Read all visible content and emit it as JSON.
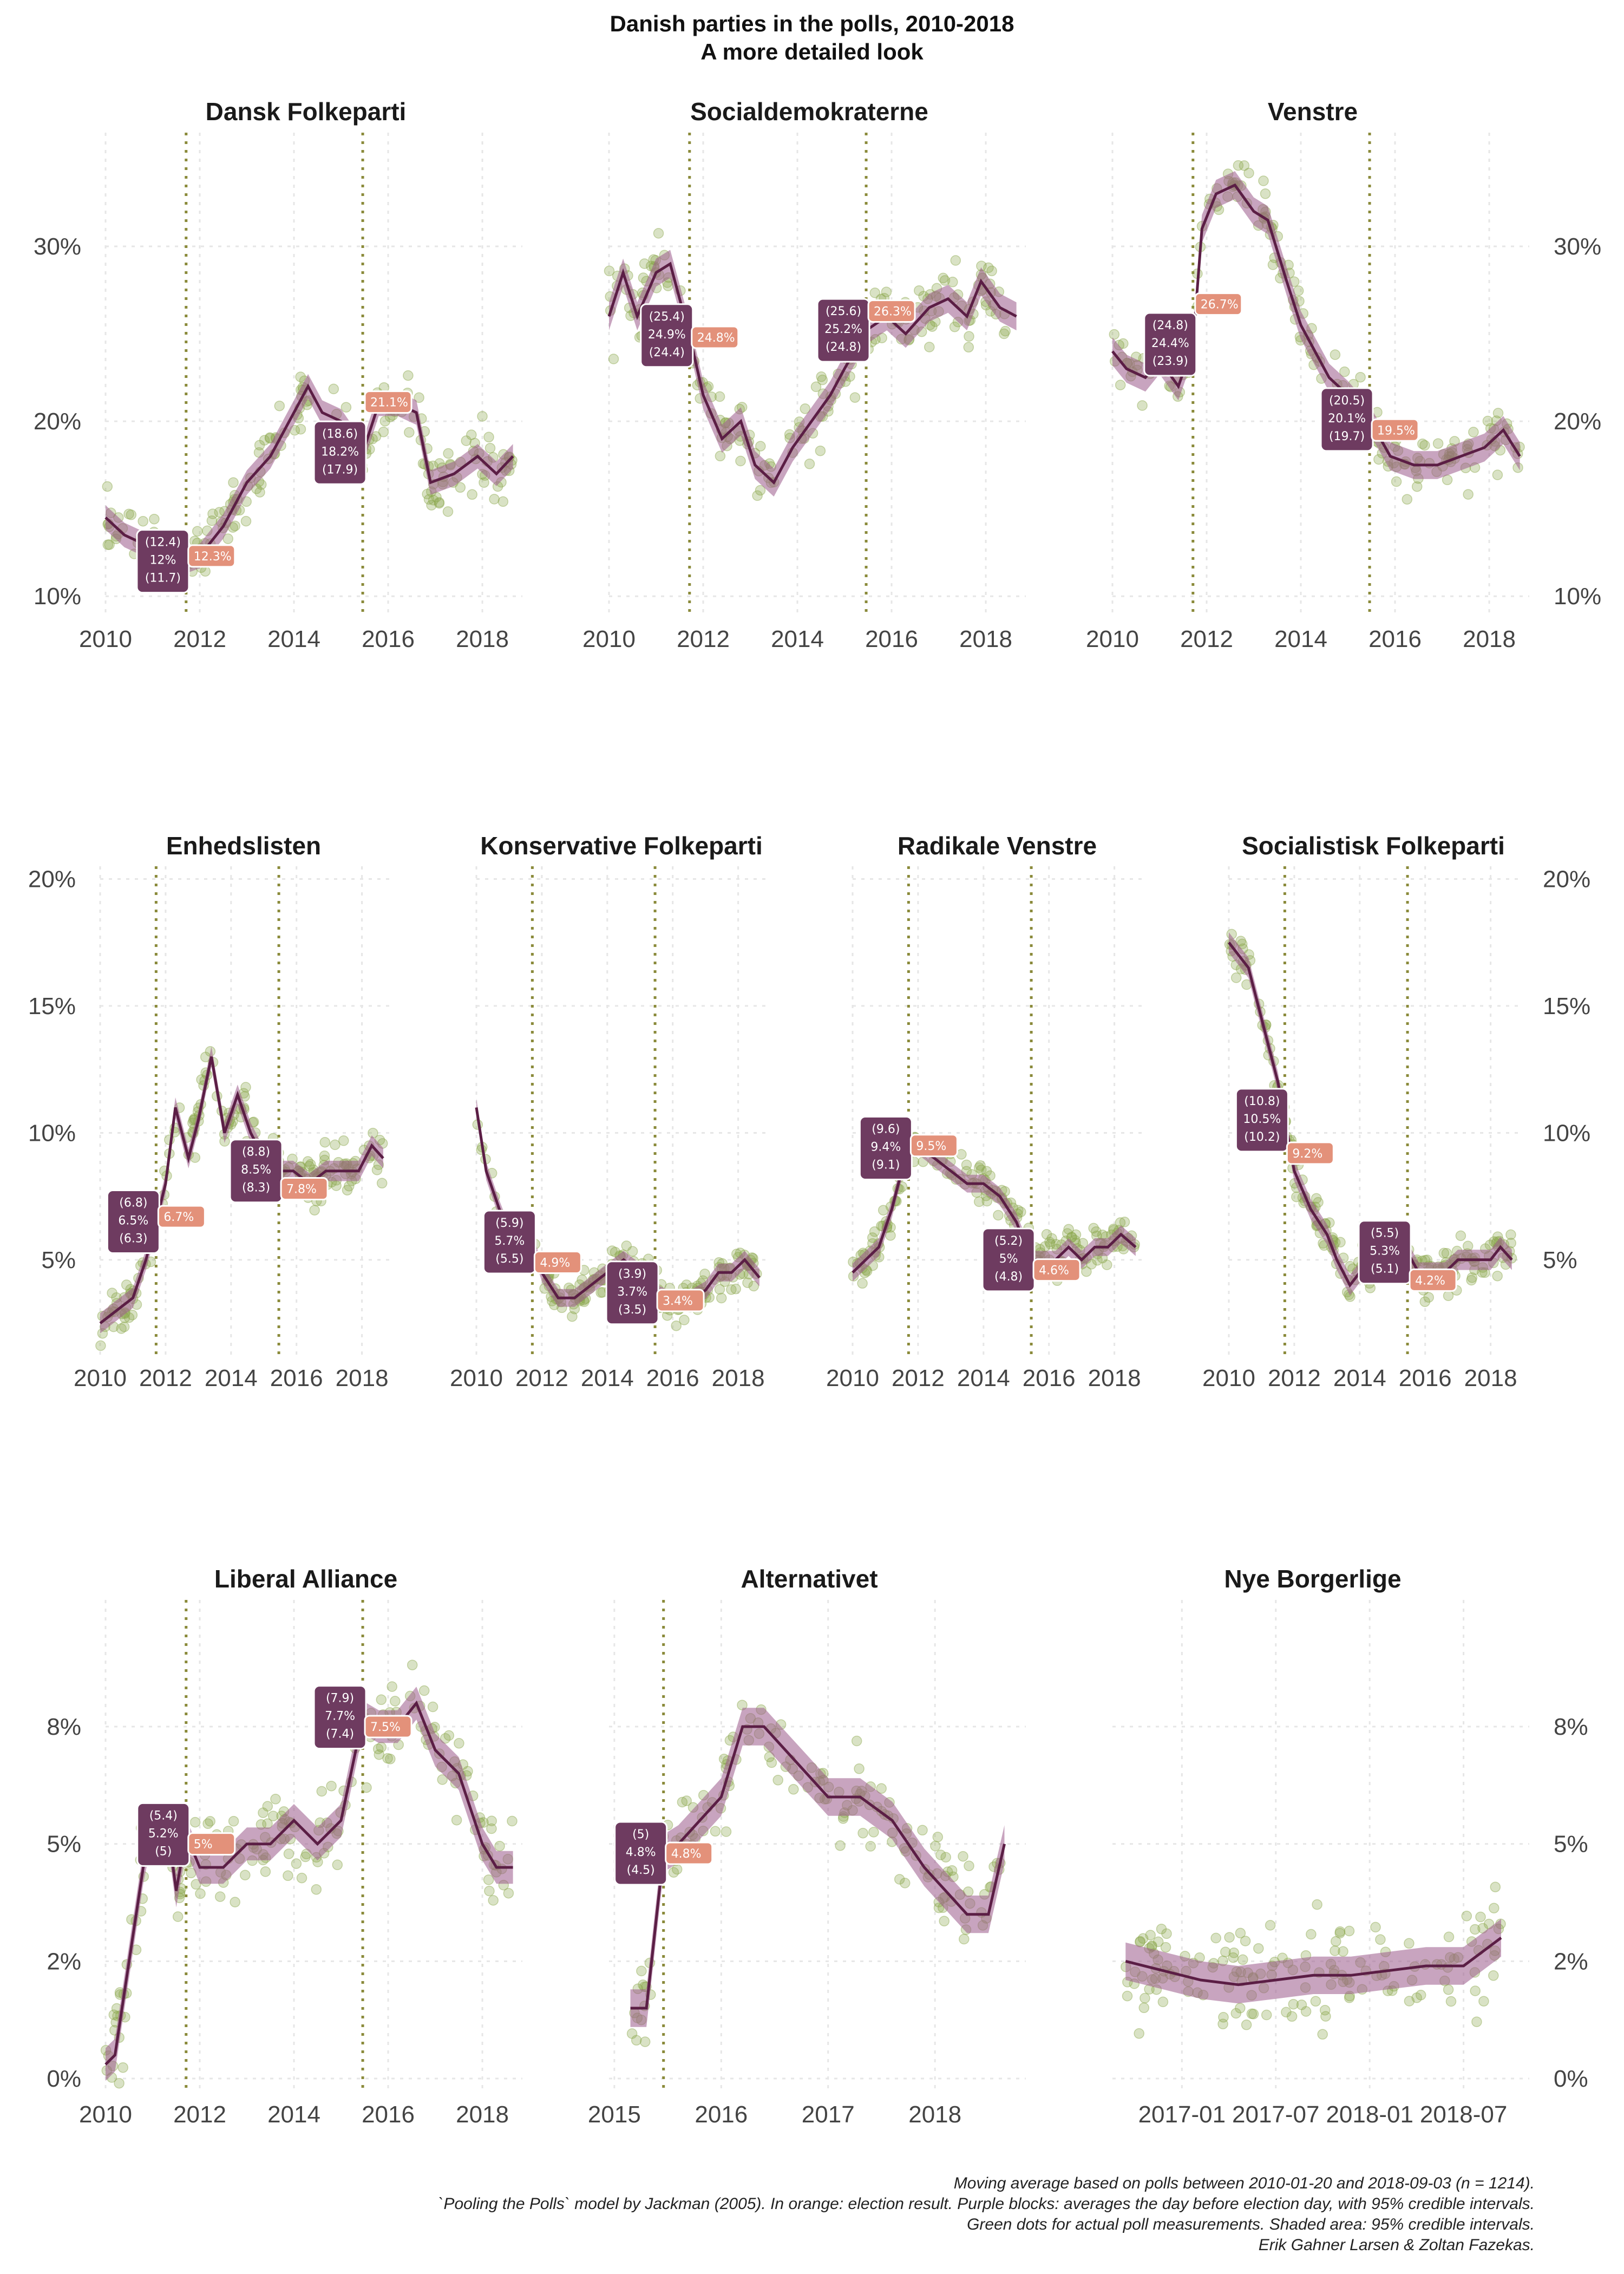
{
  "title": "Danish parties in the polls, 2010-2018",
  "subtitle": "A more detailed look",
  "caption": [
    "Moving average based on polls between 2010-01-20 and 2018-09-03 (n = 1214).",
    "`Pooling the Polls` model by Jackman (2005). In orange: election result. Purple blocks: averages the day before election day, with 95% credible intervals.",
    "Green dots for actual poll measurements. Shaded area: 95% credible intervals.",
    "Erik Gahner Larsen & Zoltan Fazekas."
  ],
  "colors": {
    "dots": "#8aa64a",
    "line": "#5b1e45",
    "band": "#9a5a8a",
    "purple_block": "#6e3b60",
    "orange_block": "#e3917a",
    "election_line": "#8a8a3a",
    "grid": "#e6e6e6"
  },
  "chart_data": [
    {
      "type": "line",
      "name": "Dansk Folkeparti",
      "title": "Dansk Folkeparti",
      "xlim": [
        2010,
        2018.85
      ],
      "ylim": [
        8.8,
        36.5
      ],
      "yticks": [
        10,
        20,
        30
      ],
      "ytick_labels": [
        "10%",
        "20%",
        "30%"
      ],
      "xticks": [
        2010,
        2012,
        2014,
        2016,
        2018
      ],
      "xtick_labels": [
        "2010",
        "2012",
        "2014",
        "2016",
        "2018"
      ],
      "elections": [
        2011.71,
        2015.46
      ],
      "x": [
        2010.0,
        2010.4,
        2010.8,
        2011.2,
        2011.7,
        2012.0,
        2012.5,
        2013.0,
        2013.5,
        2014.0,
        2014.3,
        2014.6,
        2015.0,
        2015.46,
        2015.8,
        2016.2,
        2016.6,
        2016.9,
        2017.4,
        2017.9,
        2018.3,
        2018.65
      ],
      "y": [
        14.5,
        13.5,
        13.0,
        12.5,
        12.0,
        12.3,
        14.0,
        16.5,
        18.0,
        20.5,
        22.0,
        20.5,
        20.0,
        18.2,
        21.0,
        21.0,
        20.5,
        16.5,
        17.0,
        18.0,
        17.0,
        18.0
      ],
      "band": 0.7,
      "n_dots": 200,
      "dot_spread": 1.6,
      "purple": {
        "x": 2011.7,
        "low": "(11.7)",
        "mid": "12%",
        "high": "(12.4)"
      },
      "orange": {
        "x": 2011.71,
        "value": 12.3,
        "label": "12.3%"
      },
      "purple2": {
        "x": 2015.46,
        "low": "(17.9)",
        "mid": "18.2%",
        "high": "(18.6)"
      },
      "orange2": {
        "x": 2015.46,
        "value": 21.1,
        "label": "21.1%"
      }
    },
    {
      "type": "line",
      "name": "Socialdemokraterne",
      "title": "Socialdemokraterne",
      "xlim": [
        2010,
        2018.85
      ],
      "ylim": [
        8.8,
        36.5
      ],
      "yticks": [
        10,
        20,
        30
      ],
      "ytick_labels": [],
      "xticks": [
        2010,
        2012,
        2014,
        2016,
        2018
      ],
      "xtick_labels": [
        "2010",
        "2012",
        "2014",
        "2016",
        "2018"
      ],
      "elections": [
        2011.71,
        2015.46
      ],
      "x": [
        2010.0,
        2010.3,
        2010.6,
        2011.0,
        2011.3,
        2011.71,
        2012.0,
        2012.4,
        2012.8,
        2013.1,
        2013.5,
        2013.9,
        2014.3,
        2014.7,
        2015.0,
        2015.46,
        2015.9,
        2016.3,
        2016.8,
        2017.2,
        2017.6,
        2017.9,
        2018.3,
        2018.65
      ],
      "y": [
        26.0,
        28.5,
        26.0,
        28.5,
        29.0,
        24.9,
        21.5,
        19.0,
        20.0,
        17.5,
        16.5,
        18.5,
        20.0,
        21.5,
        23.0,
        25.2,
        26.0,
        25.0,
        26.5,
        27.0,
        26.0,
        28.0,
        26.5,
        26.0
      ],
      "band": 0.8,
      "n_dots": 200,
      "dot_spread": 1.7,
      "purple": {
        "x": 2011.71,
        "low": "(24.4)",
        "mid": "24.9%",
        "high": "(25.4)"
      },
      "orange": {
        "x": 2011.71,
        "value": 24.8,
        "label": "24.8%"
      },
      "purple2": {
        "x": 2015.46,
        "low": "(24.8)",
        "mid": "25.2%",
        "high": "(25.6)"
      },
      "orange2": {
        "x": 2015.46,
        "value": 26.3,
        "label": "26.3%"
      }
    },
    {
      "type": "line",
      "name": "Venstre",
      "title": "Venstre",
      "xlim": [
        2010,
        2018.85
      ],
      "ylim": [
        8.8,
        36.5
      ],
      "yticks": [
        10,
        20,
        30
      ],
      "ytick_labels": [
        "10%",
        "20%",
        "30%"
      ],
      "xticks": [
        2010,
        2012,
        2014,
        2016,
        2018
      ],
      "xtick_labels": [
        "2010",
        "2012",
        "2014",
        "2016",
        "2018"
      ],
      "elections": [
        2011.71,
        2015.46
      ],
      "x": [
        2010.0,
        2010.3,
        2010.7,
        2011.0,
        2011.4,
        2011.71,
        2011.9,
        2012.2,
        2012.6,
        2013.0,
        2013.3,
        2013.7,
        2014.0,
        2014.3,
        2014.6,
        2015.0,
        2015.46,
        2015.9,
        2016.4,
        2016.9,
        2017.4,
        2017.9,
        2018.3,
        2018.65
      ],
      "y": [
        24.0,
        23.0,
        22.5,
        23.5,
        22.0,
        24.4,
        31.0,
        33.0,
        33.5,
        32.0,
        31.5,
        28.0,
        25.5,
        24.0,
        22.5,
        21.5,
        20.1,
        18.0,
        17.5,
        17.5,
        18.0,
        18.5,
        19.5,
        18.0
      ],
      "band": 0.8,
      "n_dots": 200,
      "dot_spread": 1.6,
      "purple": {
        "x": 2011.71,
        "low": "(23.9)",
        "mid": "24.4%",
        "high": "(24.8)"
      },
      "orange": {
        "x": 2011.71,
        "value": 26.7,
        "label": "26.7%"
      },
      "purple2": {
        "x": 2015.46,
        "low": "(19.7)",
        "mid": "20.1%",
        "high": "(20.5)"
      },
      "orange2": {
        "x": 2015.46,
        "value": 19.5,
        "label": "19.5%"
      }
    },
    {
      "type": "line",
      "name": "Enhedslisten",
      "title": "Enhedslisten",
      "xlim": [
        2010,
        2018.85
      ],
      "ylim": [
        1.2,
        20.5
      ],
      "yticks": [
        5,
        10,
        15,
        20
      ],
      "ytick_labels": [
        "5%",
        "10%",
        "15%",
        "20%"
      ],
      "xticks": [
        2010,
        2012,
        2014,
        2016,
        2018
      ],
      "xtick_labels": [
        "2010",
        "2012",
        "2014",
        "2016",
        "2018"
      ],
      "elections": [
        2011.71,
        2015.46
      ],
      "x": [
        2010.0,
        2010.5,
        2011.0,
        2011.4,
        2011.71,
        2012.0,
        2012.3,
        2012.7,
        2013.0,
        2013.4,
        2013.8,
        2014.2,
        2014.6,
        2015.0,
        2015.46,
        2015.9,
        2016.4,
        2016.9,
        2017.4,
        2017.9,
        2018.3,
        2018.65
      ],
      "y": [
        2.5,
        3.0,
        3.5,
        5.0,
        6.5,
        8.0,
        11.0,
        9.0,
        10.5,
        13.0,
        10.0,
        11.5,
        10.0,
        9.0,
        8.5,
        8.5,
        8.0,
        8.5,
        8.5,
        8.5,
        9.5,
        9.0
      ],
      "band": 0.4,
      "n_dots": 200,
      "dot_spread": 0.9,
      "purple": {
        "x": 2011.71,
        "low": "(6.3)",
        "mid": "6.5%",
        "high": "(6.8)"
      },
      "orange": {
        "x": 2011.71,
        "value": 6.7,
        "label": "6.7%"
      },
      "purple2": {
        "x": 2015.46,
        "low": "(8.3)",
        "mid": "8.5%",
        "high": "(8.8)"
      },
      "orange2": {
        "x": 2015.46,
        "value": 7.8,
        "label": "7.8%"
      }
    },
    {
      "type": "line",
      "name": "Konservative Folkeparti",
      "title": "Konservative Folkeparti",
      "xlim": [
        2010,
        2018.85
      ],
      "ylim": [
        1.2,
        20.5
      ],
      "yticks": [
        5,
        10,
        15,
        20
      ],
      "ytick_labels": [],
      "xticks": [
        2010,
        2012,
        2014,
        2016,
        2018
      ],
      "xtick_labels": [
        "2010",
        "2012",
        "2014",
        "2016",
        "2018"
      ],
      "elections": [
        2011.71,
        2015.46
      ],
      "x": [
        2010.0,
        2010.3,
        2010.7,
        2011.0,
        2011.4,
        2011.71,
        2012.0,
        2012.5,
        2013.0,
        2013.5,
        2014.0,
        2014.5,
        2015.0,
        2015.46,
        2015.8,
        2016.2,
        2016.6,
        2017.0,
        2017.4,
        2017.8,
        2018.2,
        2018.65
      ],
      "y": [
        11.0,
        8.5,
        7.0,
        6.0,
        6.0,
        5.7,
        4.5,
        3.5,
        3.5,
        4.0,
        4.5,
        5.0,
        4.5,
        3.7,
        3.5,
        3.5,
        3.5,
        3.8,
        4.5,
        4.5,
        5.0,
        4.3
      ],
      "band": 0.35,
      "n_dots": 200,
      "dot_spread": 0.7,
      "purple": {
        "x": 2011.71,
        "low": "(5.5)",
        "mid": "5.7%",
        "high": "(5.9)"
      },
      "orange": {
        "x": 2011.71,
        "value": 4.9,
        "label": "4.9%"
      },
      "purple2": {
        "x": 2015.46,
        "low": "(3.5)",
        "mid": "3.7%",
        "high": "(3.9)"
      },
      "orange2": {
        "x": 2015.46,
        "value": 3.4,
        "label": "3.4%"
      }
    },
    {
      "type": "line",
      "name": "Radikale Venstre",
      "title": "Radikale Venstre",
      "xlim": [
        2010,
        2018.85
      ],
      "ylim": [
        1.2,
        20.5
      ],
      "yticks": [
        5,
        10,
        15,
        20
      ],
      "ytick_labels": [],
      "xticks": [
        2010,
        2012,
        2014,
        2016,
        2018
      ],
      "xtick_labels": [
        "2010",
        "2012",
        "2014",
        "2016",
        "2018"
      ],
      "elections": [
        2011.71,
        2015.46
      ],
      "x": [
        2010.0,
        2010.4,
        2010.8,
        2011.2,
        2011.5,
        2011.71,
        2012.0,
        2012.5,
        2013.0,
        2013.5,
        2014.0,
        2014.5,
        2015.0,
        2015.46,
        2015.8,
        2016.2,
        2016.6,
        2017.0,
        2017.4,
        2017.8,
        2018.2,
        2018.65
      ],
      "y": [
        4.5,
        5.0,
        5.5,
        7.0,
        8.5,
        9.4,
        9.5,
        9.0,
        8.5,
        8.0,
        8.0,
        7.5,
        6.5,
        5.0,
        5.0,
        5.0,
        5.5,
        5.0,
        5.5,
        5.5,
        6.0,
        5.5
      ],
      "band": 0.35,
      "n_dots": 200,
      "dot_spread": 0.8,
      "purple": {
        "x": 2011.71,
        "low": "(9.1)",
        "mid": "9.4%",
        "high": "(9.6)"
      },
      "orange": {
        "x": 2011.71,
        "value": 9.5,
        "label": "9.5%"
      },
      "purple2": {
        "x": 2015.46,
        "low": "(4.8)",
        "mid": "5%",
        "high": "(5.2)"
      },
      "orange2": {
        "x": 2015.46,
        "value": 4.6,
        "label": "4.6%"
      }
    },
    {
      "type": "line",
      "name": "Socialistisk Folkeparti",
      "title": "Socialistisk Folkeparti",
      "xlim": [
        2010,
        2018.85
      ],
      "ylim": [
        1.2,
        20.5
      ],
      "yticks": [
        5,
        10,
        15,
        20
      ],
      "ytick_labels": [
        "5%",
        "10%",
        "15%",
        "20%"
      ],
      "xticks": [
        2010,
        2012,
        2014,
        2016,
        2018
      ],
      "xtick_labels": [
        "2010",
        "2012",
        "2014",
        "2016",
        "2018"
      ],
      "elections": [
        2011.71,
        2015.46
      ],
      "x": [
        2010.0,
        2010.3,
        2010.6,
        2010.9,
        2011.2,
        2011.5,
        2011.71,
        2012.0,
        2012.5,
        2013.0,
        2013.3,
        2013.7,
        2014.0,
        2014.5,
        2015.0,
        2015.46,
        2015.8,
        2016.2,
        2016.6,
        2017.0,
        2017.5,
        2018.0,
        2018.3,
        2018.65
      ],
      "y": [
        17.5,
        17.0,
        16.5,
        15.0,
        13.5,
        12.0,
        10.5,
        8.5,
        7.0,
        6.0,
        5.0,
        4.0,
        4.5,
        5.0,
        5.5,
        5.3,
        4.5,
        4.5,
        4.5,
        5.0,
        5.0,
        5.0,
        5.5,
        5.0
      ],
      "band": 0.4,
      "n_dots": 200,
      "dot_spread": 0.8,
      "purple": {
        "x": 2011.71,
        "low": "(10.2)",
        "mid": "10.5%",
        "high": "(10.8)"
      },
      "orange": {
        "x": 2011.71,
        "value": 9.2,
        "label": "9.2%"
      },
      "purple2": {
        "x": 2015.46,
        "low": "(5.1)",
        "mid": "5.3%",
        "high": "(5.5)"
      },
      "orange2": {
        "x": 2015.46,
        "value": 4.2,
        "label": "4.2%"
      }
    },
    {
      "type": "line",
      "name": "Liberal Alliance",
      "title": "Liberal Alliance",
      "xlim": [
        2010,
        2018.85
      ],
      "ylim": [
        -0.3,
        10.2
      ],
      "yticks": [
        0,
        2.5,
        5,
        7.5
      ],
      "ytick_labels": [
        "0%",
        "2%",
        "5%",
        "8%"
      ],
      "xticks": [
        2010,
        2012,
        2014,
        2016,
        2018
      ],
      "xtick_labels": [
        "2010",
        "2012",
        "2014",
        "2016",
        "2018"
      ],
      "elections": [
        2011.71,
        2015.46
      ],
      "x": [
        2010.0,
        2010.2,
        2010.5,
        2010.8,
        2011.0,
        2011.3,
        2011.5,
        2011.71,
        2012.0,
        2012.5,
        2013.0,
        2013.5,
        2014.0,
        2014.5,
        2015.0,
        2015.46,
        2015.8,
        2016.2,
        2016.6,
        2017.0,
        2017.5,
        2018.0,
        2018.3,
        2018.65
      ],
      "y": [
        0.3,
        0.5,
        2.5,
        4.5,
        5.5,
        5.5,
        4.0,
        5.2,
        4.5,
        4.5,
        5.0,
        5.0,
        5.5,
        5.0,
        5.5,
        7.7,
        7.5,
        7.5,
        8.0,
        7.0,
        6.5,
        5.0,
        4.5,
        4.5
      ],
      "band": 0.35,
      "n_dots": 200,
      "dot_spread": 0.9,
      "purple": {
        "x": 2011.71,
        "low": "(5)",
        "mid": "5.2%",
        "high": "(5.4)"
      },
      "orange": {
        "x": 2011.71,
        "value": 5.0,
        "label": "5%"
      },
      "purple2": {
        "x": 2015.46,
        "low": "(7.4)",
        "mid": "7.7%",
        "high": "(7.9)"
      },
      "orange2": {
        "x": 2015.46,
        "value": 7.5,
        "label": "7.5%"
      }
    },
    {
      "type": "line",
      "name": "Alternativet",
      "title": "Alternativet",
      "xlim": [
        2014.95,
        2018.85
      ],
      "ylim": [
        -0.3,
        10.2
      ],
      "yticks": [
        0,
        2.5,
        5,
        7.5
      ],
      "ytick_labels": [],
      "xticks": [
        2015,
        2016,
        2017,
        2018
      ],
      "xtick_labels": [
        "2015",
        "2016",
        "2017",
        "2018"
      ],
      "elections": [
        2015.46
      ],
      "x": [
        2015.15,
        2015.3,
        2015.46,
        2015.6,
        2015.8,
        2016.0,
        2016.2,
        2016.4,
        2016.6,
        2016.8,
        2017.0,
        2017.3,
        2017.6,
        2017.9,
        2018.1,
        2018.3,
        2018.5,
        2018.65
      ],
      "y": [
        1.5,
        1.5,
        4.8,
        5.0,
        5.5,
        6.0,
        7.5,
        7.5,
        7.0,
        6.5,
        6.0,
        6.0,
        5.5,
        4.5,
        4.0,
        3.5,
        3.5,
        5.0
      ],
      "band": 0.4,
      "n_dots": 160,
      "dot_spread": 0.8,
      "purple": {
        "x": 2015.46,
        "low": "(4.5)",
        "mid": "4.8%",
        "high": "(5)"
      },
      "orange": {
        "x": 2015.46,
        "value": 4.8,
        "label": "4.8%"
      }
    },
    {
      "type": "line",
      "name": "Nye Borgerlige",
      "title": "Nye Borgerlige",
      "xlim": [
        2016.63,
        2018.85
      ],
      "ylim": [
        -0.3,
        10.2
      ],
      "yticks": [
        0,
        2.5,
        5,
        7.5
      ],
      "ytick_labels": [
        "0%",
        "2%",
        "5%",
        "8%"
      ],
      "xticks": [
        2017.0,
        2017.5,
        2018.0,
        2018.5
      ],
      "xtick_labels": [
        "2017-01",
        "2017-07",
        "2018-01",
        "2018-07"
      ],
      "elections": [],
      "x": [
        2016.7,
        2016.9,
        2017.1,
        2017.3,
        2017.5,
        2017.7,
        2017.9,
        2018.1,
        2018.3,
        2018.5,
        2018.7
      ],
      "y": [
        2.5,
        2.3,
        2.1,
        2.0,
        2.1,
        2.2,
        2.2,
        2.3,
        2.4,
        2.4,
        3.0
      ],
      "band": 0.4,
      "n_dots": 160,
      "dot_spread": 1.1
    }
  ]
}
